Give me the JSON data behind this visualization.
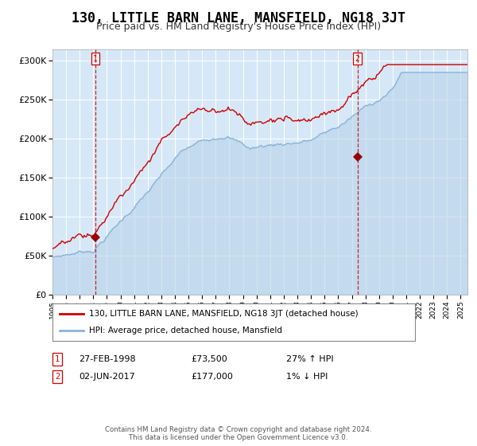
{
  "title": "130, LITTLE BARN LANE, MANSFIELD, NG18 3JT",
  "subtitle": "Price paid vs. HM Land Registry's House Price Index (HPI)",
  "title_fontsize": 12,
  "subtitle_fontsize": 9,
  "plot_bg_color": "#d6e8f7",
  "hpi_color": "#8ab4d8",
  "property_color": "#cc0000",
  "ylim": [
    0,
    315000
  ],
  "yticks": [
    0,
    50000,
    100000,
    150000,
    200000,
    250000,
    300000
  ],
  "ytick_labels": [
    "£0",
    "£50K",
    "£100K",
    "£150K",
    "£200K",
    "£250K",
    "£300K"
  ],
  "sale1_year": 1998.15,
  "sale1_price": 73500,
  "sale1_label": "1",
  "sale1_date": "27-FEB-1998",
  "sale1_hpi_pct": "27% ↑ HPI",
  "sale2_year": 2017.42,
  "sale2_price": 177000,
  "sale2_label": "2",
  "sale2_date": "02-JUN-2017",
  "sale2_hpi_pct": "1% ↓ HPI",
  "legend_property": "130, LITTLE BARN LANE, MANSFIELD, NG18 3JT (detached house)",
  "legend_hpi": "HPI: Average price, detached house, Mansfield",
  "footer": "Contains HM Land Registry data © Crown copyright and database right 2024.\nThis data is licensed under the Open Government Licence v3.0."
}
